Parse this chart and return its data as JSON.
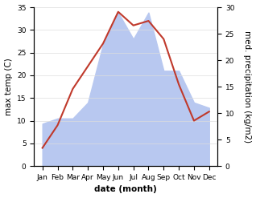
{
  "months": [
    "Jan",
    "Feb",
    "Mar",
    "Apr",
    "May",
    "Jun",
    "Jul",
    "Aug",
    "Sep",
    "Oct",
    "Nov",
    "Dec"
  ],
  "temperature": [
    4,
    9,
    17,
    22,
    27,
    34,
    31,
    32,
    28,
    18,
    10,
    12
  ],
  "precipitation": [
    8,
    9,
    9,
    12,
    23,
    29,
    24,
    29,
    18,
    18,
    12,
    11
  ],
  "temp_color": "#c0392b",
  "precip_color": "#b8c8f0",
  "temp_ylim": [
    0,
    35
  ],
  "precip_ylim": [
    0,
    30
  ],
  "temp_yticks": [
    0,
    5,
    10,
    15,
    20,
    25,
    30,
    35
  ],
  "precip_yticks": [
    0,
    5,
    10,
    15,
    20,
    25,
    30
  ],
  "xlabel": "date (month)",
  "ylabel_left": "max temp (C)",
  "ylabel_right": "med. precipitation (kg/m2)",
  "label_fontsize": 7.5,
  "tick_fontsize": 6.5,
  "line_width": 1.5,
  "bg_color": "#ffffff"
}
